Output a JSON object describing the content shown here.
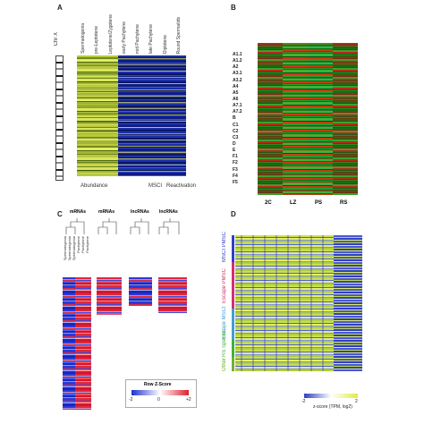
{
  "panel_a": {
    "label": "A",
    "chromosome": "Chr X",
    "columns": [
      "Spermatogonia",
      "pre-Leptotene",
      "Leptotene/Zygotene",
      "early Pachytene",
      "mid Pachytene",
      "late Pachytene",
      "Diplotene",
      "Round Spermatids"
    ],
    "groups": [
      "Abundance",
      "MSCI",
      "Reactivation"
    ]
  },
  "panel_b": {
    "label": "B",
    "rows": [
      "A1.1",
      "A1.2",
      "A2",
      "A3.1",
      "A3.2",
      "A4",
      "A5",
      "A6",
      "A7.1",
      "A7.2",
      "B",
      "C1",
      "C2",
      "C3",
      "D",
      "E",
      "F1",
      "F2",
      "F3",
      "F4",
      "F5"
    ],
    "columns": [
      "2C",
      "LZ",
      "PS",
      "RS"
    ]
  },
  "panel_c": {
    "label": "C",
    "titles": [
      "mRNAs",
      "mRNAs",
      "lncRNAs",
      "lncRNAs"
    ],
    "samples": [
      "Spermatogonia",
      "Spermatogonia",
      "Spermatogonia",
      "Pachytene",
      "Pachytene",
      "Pachytene"
    ],
    "legend_title": "Row Z-Score",
    "legend_ticks": [
      "-2",
      "0",
      "+2"
    ]
  },
  "panel_d": {
    "label": "D",
    "groups": [
      "MSCI PMSC",
      "Escape PMSC",
      "Escape MSCI",
      "RS Specific",
      "Other"
    ],
    "legend_ticks": [
      "-2",
      "2"
    ],
    "legend_title": "z-score (TPM, log2)"
  }
}
